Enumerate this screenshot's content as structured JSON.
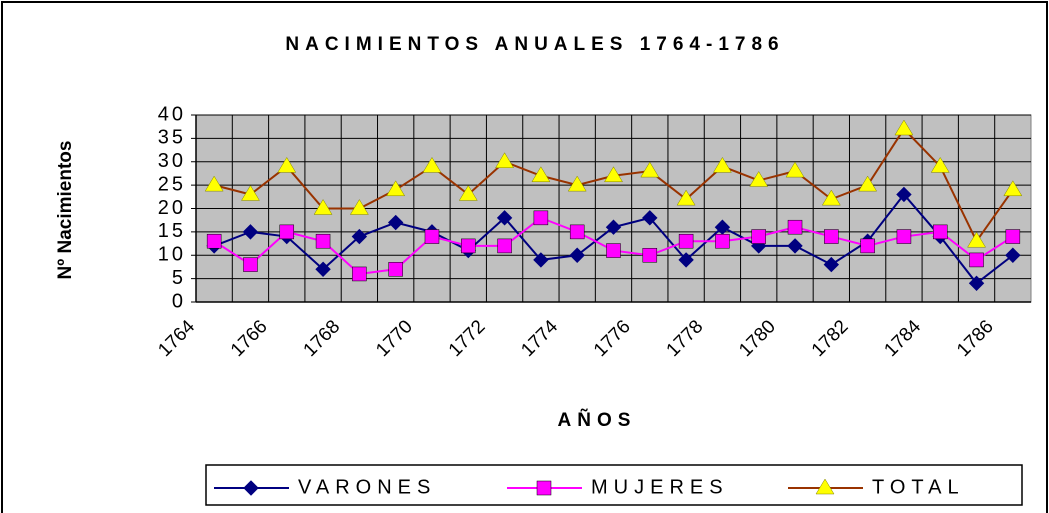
{
  "chart_data": {
    "type": "line",
    "title": "NACIMIENTOS ANUALES 1764-1786",
    "x_label": "AÑOS",
    "y_label": "Nº Nacimientos",
    "categories": [
      "1764",
      null,
      "1766",
      null,
      "1768",
      null,
      "1770",
      null,
      "1772",
      null,
      "1774",
      null,
      "1776",
      null,
      "1778",
      null,
      "1780",
      null,
      "1782",
      null,
      "1784",
      null,
      "1786"
    ],
    "series": [
      {
        "name": "VARONES",
        "color": "#000080",
        "marker": "diamond",
        "marker_color": "#000080",
        "values": [
          12,
          15,
          14,
          7,
          14,
          17,
          15,
          11,
          18,
          9,
          10,
          16,
          18,
          9,
          16,
          12,
          12,
          8,
          13,
          23,
          14,
          4,
          10
        ]
      },
      {
        "name": "MUJERES",
        "color": "#ff00ff",
        "marker": "square",
        "marker_color": "#ff00ff",
        "values": [
          13,
          8,
          15,
          13,
          6,
          7,
          14,
          12,
          12,
          18,
          15,
          11,
          10,
          13,
          13,
          14,
          16,
          14,
          12,
          14,
          15,
          9,
          14
        ]
      },
      {
        "name": "TOTAL",
        "color": "#993300",
        "marker": "triangle",
        "marker_color": "#ffff00",
        "values": [
          25,
          23,
          29,
          20,
          20,
          24,
          29,
          23,
          30,
          27,
          25,
          27,
          28,
          22,
          29,
          26,
          28,
          22,
          25,
          37,
          29,
          13,
          24
        ]
      }
    ],
    "ylim": [
      0,
      40
    ],
    "yticks": [
      0,
      5,
      10,
      15,
      20,
      25,
      30,
      35,
      40
    ],
    "grid": true,
    "legend": "bottom"
  }
}
